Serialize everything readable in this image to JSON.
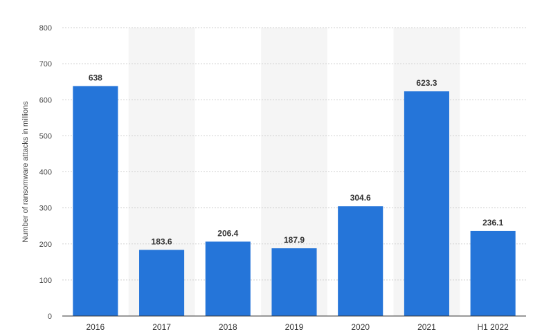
{
  "chart_data": {
    "type": "bar",
    "title": "",
    "xlabel": "",
    "ylabel": "Number of ransomware attacks in millions",
    "categories": [
      "2016",
      "2017",
      "2018",
      "2019",
      "2020",
      "2021",
      "H1 2022"
    ],
    "values": [
      638,
      183.6,
      206.4,
      187.9,
      304.6,
      623.3,
      236.1
    ],
    "value_labels": [
      "638",
      "183.6",
      "206.4",
      "187.9",
      "304.6",
      "623.3",
      "236.1"
    ],
    "ylim": [
      0,
      800
    ],
    "yticks": [
      0,
      100,
      200,
      300,
      400,
      500,
      600,
      700,
      800
    ],
    "ytick_labels": [
      "0",
      "100",
      "200",
      "300",
      "400",
      "500",
      "600",
      "700",
      "800"
    ],
    "grid": true,
    "alternating_column_shading": true,
    "colors": {
      "bar": "#2575d9",
      "grid": "#cfcfcf",
      "band": "#f5f5f5",
      "axis": "#333333"
    }
  }
}
